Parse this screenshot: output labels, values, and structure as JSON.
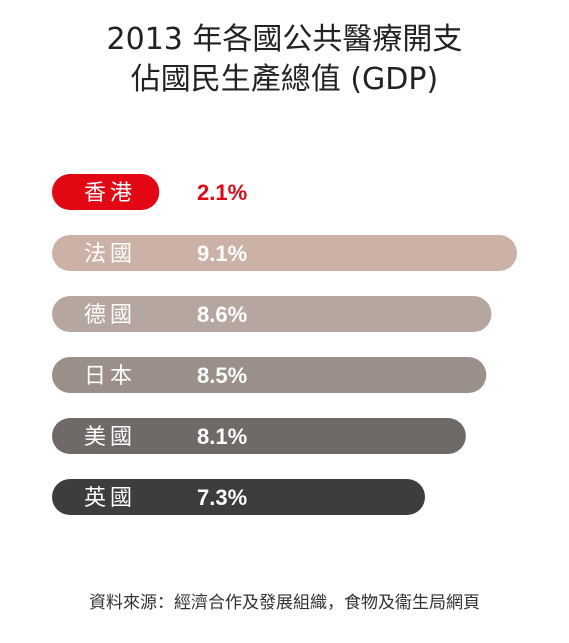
{
  "chart_data": {
    "type": "bar",
    "orientation": "horizontal",
    "title_lines": [
      "2013 年各國公共醫療開支",
      "佔國民生產總值 (GDP)"
    ],
    "categories": [
      "香港",
      "法國",
      "德國",
      "日本",
      "美國",
      "英國"
    ],
    "values": [
      2.1,
      9.1,
      8.6,
      8.5,
      8.1,
      7.3
    ],
    "value_labels": [
      "2.1%",
      "9.1%",
      "8.6%",
      "8.5%",
      "8.1%",
      "7.3%"
    ],
    "unit": "%",
    "colors": [
      "#e30613",
      "#ccb1a6",
      "#b5a7a0",
      "#9a8f89",
      "#6f6a68",
      "#3f3c3c"
    ],
    "highlight_label_color": "#e30613",
    "xlim": [
      0,
      9.1
    ],
    "grid": false,
    "legend": "none",
    "source": "資料來源：經濟合作及發展組織，食物及衞生局網頁"
  }
}
